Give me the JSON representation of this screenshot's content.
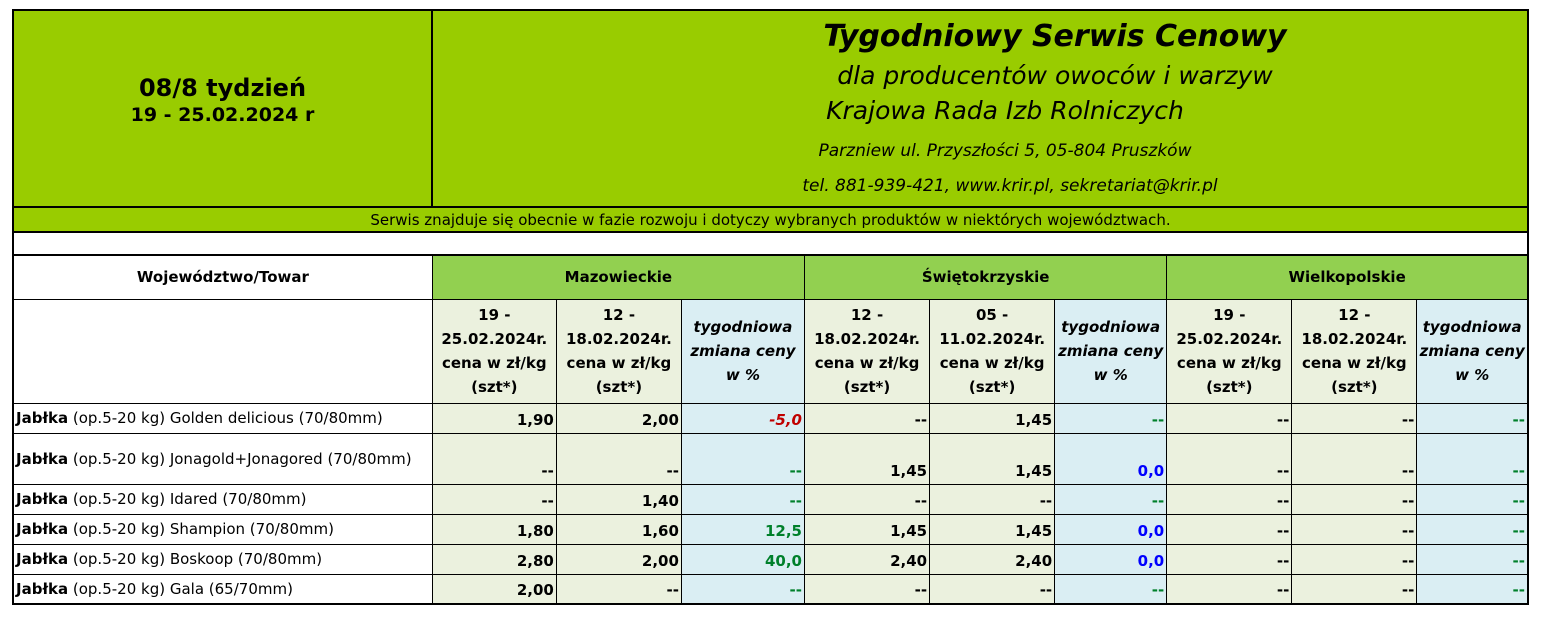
{
  "header": {
    "week_title": "08/8 tydzień",
    "week_dates": "19 - 25.02.2024 r",
    "service_title": "Tygodniowy Serwis Cenowy",
    "service_subtitle": "dla producentów owoców i warzyw",
    "organization": "Krajowa Rada Izb Rolniczych",
    "address": "Parzniew ul. Przyszłości 5, 05-804 Pruszków",
    "contact": "tel. 881-939-421, www.krir.pl, sekretariat@krir.pl"
  },
  "notice": "Serwis znajduje się obecnie w fazie rozwoju i dotyczy wybranych produktów w niektórych województwach.",
  "table": {
    "corner_label": "Województwo/Towar",
    "regions": [
      {
        "name": "Mazowieckie",
        "col1": "19 - 25.02.2024r. cena w zł/kg (szt*)",
        "col2": "12 - 18.02.2024r. cena w zł/kg (szt*)",
        "col3": "tygodniowa zmiana ceny w %"
      },
      {
        "name": "Świętokrzyskie",
        "col1": "12 - 18.02.2024r. cena w zł/kg (szt*)",
        "col2": "05 - 11.02.2024r. cena w zł/kg (szt*)",
        "col3": "tygodniowa zmiana ceny w %"
      },
      {
        "name": "Wielkopolskie",
        "col1": "19 - 25.02.2024r. cena w zł/kg (szt*)",
        "col2": "12 - 18.02.2024r. cena w zł/kg (szt*)",
        "col3": "tygodniowa zmiana ceny w %"
      }
    ],
    "rows": [
      {
        "bold": "Jabłka",
        "rest": " (op.5-20 kg) Golden delicious (70/80mm)",
        "values": [
          "1,90",
          "2,00",
          "-5,0",
          "--",
          "1,45",
          "--",
          "--",
          "--",
          "--"
        ],
        "change_kinds": [
          "neg",
          "dash",
          "dash"
        ]
      },
      {
        "bold": "Jabłka",
        "rest": " (op.5-20 kg) Jonagold+Jonagored (70/80mm)",
        "values": [
          "--",
          "--",
          "--",
          "1,45",
          "1,45",
          "0,0",
          "--",
          "--",
          "--"
        ],
        "change_kinds": [
          "dash",
          "zero",
          "dash"
        ]
      },
      {
        "bold": "Jabłka",
        "rest": " (op.5-20 kg) Idared (70/80mm)",
        "values": [
          "--",
          "1,40",
          "--",
          "--",
          "--",
          "--",
          "--",
          "--",
          "--"
        ],
        "change_kinds": [
          "dash",
          "dash",
          "dash"
        ]
      },
      {
        "bold": "Jabłka",
        "rest": " (op.5-20 kg) Shampion (70/80mm)",
        "values": [
          "1,80",
          "1,60",
          "12,5",
          "1,45",
          "1,45",
          "0,0",
          "--",
          "--",
          "--"
        ],
        "change_kinds": [
          "pos",
          "zero",
          "dash"
        ]
      },
      {
        "bold": "Jabłka",
        "rest": " (op.5-20 kg) Boskoop (70/80mm)",
        "values": [
          "2,80",
          "2,00",
          "40,0",
          "2,40",
          "2,40",
          "0,0",
          "--",
          "--",
          "--"
        ],
        "change_kinds": [
          "pos",
          "zero",
          "dash"
        ]
      },
      {
        "bold": "Jabłka",
        "rest": " (op.5-20 kg) Gala (65/70mm)",
        "values": [
          "2,00",
          "--",
          "--",
          "--",
          "--",
          "--",
          "--",
          "--",
          "--"
        ],
        "change_kinds": [
          "dash",
          "dash",
          "dash"
        ]
      }
    ]
  },
  "colors": {
    "header_green": "#99cc00",
    "region_green": "#92d050",
    "price_bg": "#ebf1de",
    "change_bg": "#daeef3",
    "negative": "#c00000",
    "positive": "#00802b",
    "zero": "#0000ff"
  }
}
